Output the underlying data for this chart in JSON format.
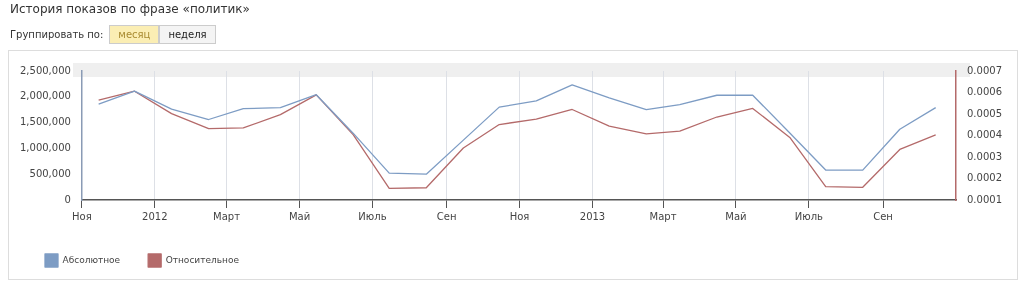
{
  "chart_data": {
    "type": "line",
    "title": "История показов по фразе «политик»",
    "annotations": [
      "Группировать по:",
      "месяц",
      "неделя"
    ],
    "x": [
      "2011-11-15",
      "2011-12-15",
      "2012-01-15",
      "2012-02-15",
      "2012-03-15",
      "2012-04-15",
      "2012-05-15",
      "2012-06-15",
      "2012-07-15",
      "2012-08-15",
      "2012-09-15",
      "2012-10-15",
      "2012-11-15",
      "2012-12-15",
      "2013-01-15",
      "2013-02-15",
      "2013-03-15",
      "2013-04-15",
      "2013-05-15",
      "2013-06-15",
      "2013-07-15",
      "2013-08-15",
      "2013-09-15",
      "2013-10-15"
    ],
    "xlim": [
      "2011-11",
      "2013-11"
    ],
    "xticks": [
      {
        "value": "2011-11",
        "label": "Ноя"
      },
      {
        "value": "2012-01",
        "label": "2012"
      },
      {
        "value": "2012-03",
        "label": "Март"
      },
      {
        "value": "2012-05",
        "label": "Май"
      },
      {
        "value": "2012-07",
        "label": "Июль"
      },
      {
        "value": "2012-09",
        "label": "Сен"
      },
      {
        "value": "2012-11",
        "label": "Ноя"
      },
      {
        "value": "2013-01",
        "label": "2013"
      },
      {
        "value": "2013-03",
        "label": "Март"
      },
      {
        "value": "2013-05",
        "label": "Май"
      },
      {
        "value": "2013-07",
        "label": "Июль"
      },
      {
        "value": "2013-09",
        "label": "Сен"
      }
    ],
    "ylim": [
      0,
      2500000
    ],
    "yticks": [
      0,
      {
        "value": 500000,
        "label": "500,000"
      },
      {
        "value": 1000000,
        "label": "1,000,000"
      },
      {
        "value": 1500000,
        "label": "1,500,000"
      },
      {
        "value": 2000000,
        "label": "2,000,000"
      },
      {
        "value": 2500000,
        "label": "2,500,000"
      }
    ],
    "y2lim": [
      0.0001,
      0.0007
    ],
    "y2ticks": [
      0.0001,
      0.0002,
      0.0003,
      0.0004,
      0.0005,
      0.0006,
      0.0007
    ],
    "grid": "x",
    "legend": "bottom left",
    "marker": "none",
    "series": [
      {
        "name": "Абсолютное",
        "color": "#7d9cc4",
        "values": [
          1860000,
          2110000,
          1760000,
          1560000,
          1770000,
          1790000,
          2040000,
          1290000,
          520000,
          500000,
          1160000,
          1800000,
          1920000,
          2230000,
          1980000,
          1750000,
          1850000,
          2030000,
          2030000,
          1300000,
          580000,
          580000,
          1370000,
          1790000
        ]
      },
      {
        "name": "Относительное",
        "color": "#b46a6a",
        "axis": "y2",
        "values": [
          0.000564,
          0.000606,
          0.000502,
          0.000432,
          0.000435,
          0.000497,
          0.000589,
          0.000403,
          0.000154,
          0.000157,
          0.000342,
          0.000451,
          0.000476,
          0.000521,
          0.000444,
          0.000408,
          0.00042,
          0.000486,
          0.000526,
          0.000391,
          0.000162,
          0.000159,
          0.000335,
          0.000403
        ]
      }
    ]
  }
}
